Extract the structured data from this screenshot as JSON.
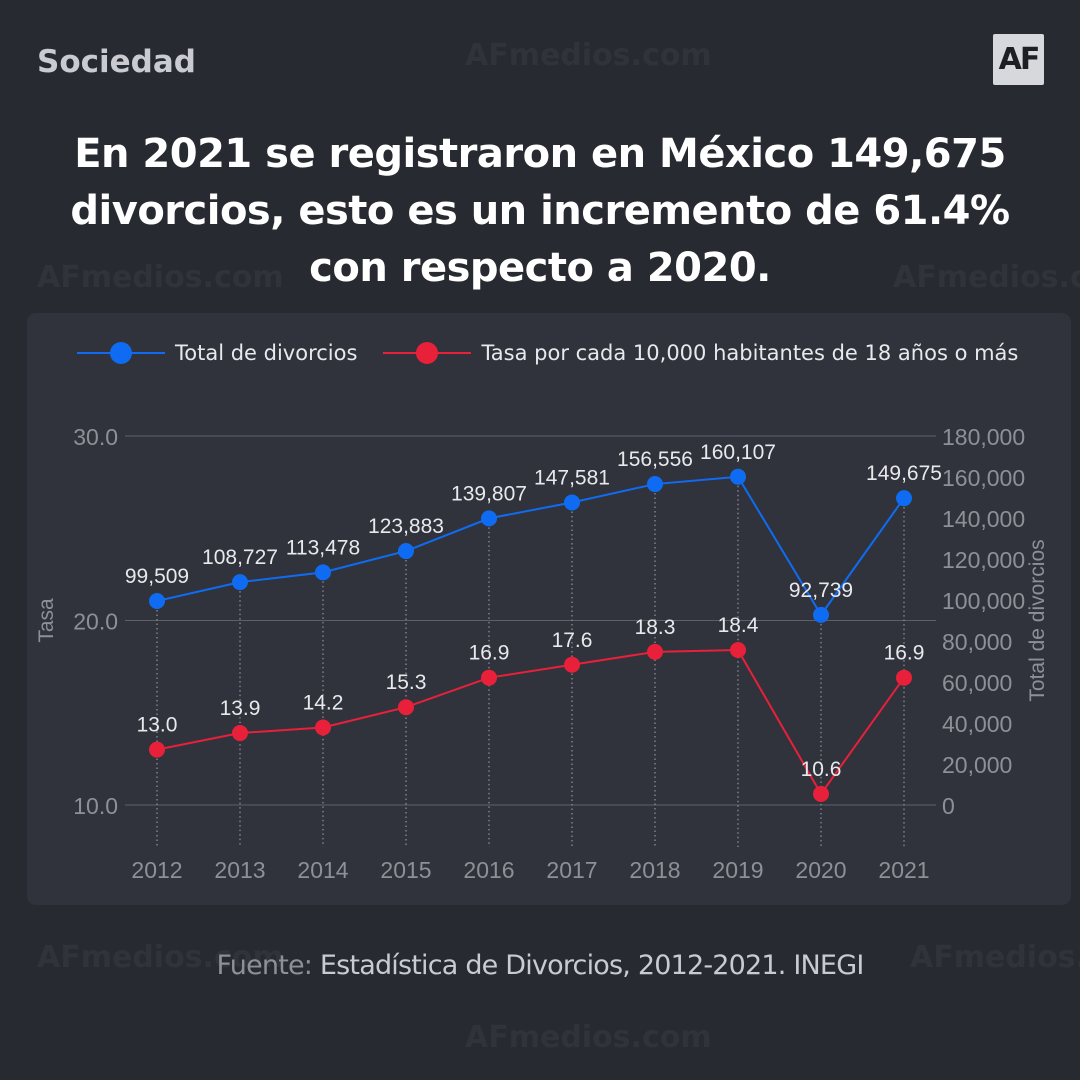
{
  "header": {
    "section": "Sociedad",
    "logo_text": "AF",
    "watermark": "AFmedios.com"
  },
  "chart_data": {
    "type": "line",
    "title": "En 2021 se registraron en México 149,675 divorcios, esto es un incremento de 61.4% con respecto a 2020.",
    "x": [
      "2012",
      "2013",
      "2014",
      "2015",
      "2016",
      "2017",
      "2018",
      "2019",
      "2020",
      "2021"
    ],
    "series": [
      {
        "name": "Total de divorcios",
        "axis": "right",
        "values": [
          99509,
          108727,
          113478,
          123883,
          139807,
          147581,
          156556,
          160107,
          92739,
          149675
        ],
        "labels": [
          "99,509",
          "108,727",
          "113,478",
          "123,883",
          "139,807",
          "147,581",
          "156,556",
          "160,107",
          "92,739",
          "149,675"
        ],
        "color": "#0f6cf2"
      },
      {
        "name": "Tasa por cada 10,000 habitantes de 18 años o más",
        "axis": "left",
        "values": [
          13.0,
          13.9,
          14.2,
          15.3,
          16.9,
          17.6,
          18.3,
          18.4,
          10.6,
          16.9
        ],
        "labels": [
          "13.0",
          "13.9",
          "14.2",
          "15.3",
          "16.9",
          "17.6",
          "18.3",
          "18.4",
          "10.6",
          "16.9"
        ],
        "color": "#e8203a"
      }
    ],
    "ylabel_left": "Tasa",
    "ylim_left": [
      10,
      30
    ],
    "yticks_left": [
      "10.0",
      "20.0",
      "30.0"
    ],
    "ylabel_right": "Total de divorcios",
    "ylim_right": [
      0,
      180000
    ],
    "yticks_right": [
      "0",
      "20,000",
      "40,000",
      "60,000",
      "80,000",
      "100,000",
      "120,000",
      "140,000",
      "160,000",
      "180,000"
    ],
    "grid": true,
    "legend": "top-left"
  },
  "source": {
    "prefix": "Fuente:",
    "text": "Estadística de Divorcios, 2012-2021. INEGI"
  }
}
